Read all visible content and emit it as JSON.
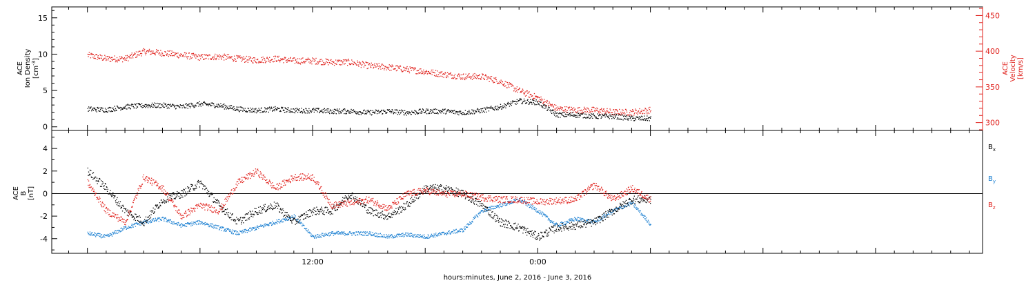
{
  "chart_data": [
    {
      "type": "scatter",
      "panel": "top",
      "xlabel": "hours:minutes, June  2, 2016 - June  3, 2016",
      "x_tick_labels": [
        "12:00",
        "0:00"
      ],
      "left_axis": {
        "label_line1": "ACE",
        "label_line2": "Ion Density",
        "label_line3": "[cm",
        "label_sup": "-3",
        "label_close": "]",
        "ylim": [
          -0.5,
          16.5
        ],
        "ticks": [
          0,
          5,
          10,
          15
        ],
        "tick_labels": [
          "0",
          "5",
          "10",
          "15"
        ],
        "color": "#000000"
      },
      "right_axis": {
        "label_line1": "ACE",
        "label_line2": "Velocity",
        "label_line3": "[km/s]",
        "ylim": [
          289,
          462
        ],
        "ticks": [
          300,
          350,
          400,
          450
        ],
        "tick_labels": [
          "300",
          "350",
          "400",
          "450"
        ],
        "color": "#e0201b"
      },
      "series": [
        {
          "color": "#000000",
          "axis": "left",
          "x_hours": [
            0,
            1,
            2,
            3,
            4,
            5,
            6,
            7,
            8,
            9,
            10,
            11,
            12,
            13,
            14,
            15,
            16,
            17,
            18,
            19,
            20,
            21,
            22,
            23,
            24,
            25,
            26,
            27,
            28,
            29,
            30
          ],
          "values": [
            2.5,
            2.4,
            2.8,
            3.0,
            3.0,
            2.8,
            3.2,
            3.0,
            2.5,
            2.3,
            2.5,
            2.3,
            2.3,
            2.2,
            2.2,
            2.0,
            2.2,
            2.0,
            2.2,
            2.2,
            2.0,
            2.3,
            2.8,
            3.6,
            3.4,
            1.7,
            1.7,
            1.5,
            1.5,
            1.2,
            1.2
          ]
        },
        {
          "color": "#e0201b",
          "axis": "right",
          "x_hours": [
            0,
            1,
            2,
            3,
            4,
            5,
            6,
            7,
            8,
            9,
            10,
            11,
            12,
            13,
            14,
            15,
            16,
            17,
            18,
            19,
            20,
            21,
            22,
            23,
            24,
            25,
            26,
            27,
            28,
            29,
            30
          ],
          "values": [
            395,
            390,
            390,
            400,
            398,
            395,
            392,
            393,
            390,
            388,
            390,
            387,
            387,
            385,
            385,
            380,
            378,
            375,
            372,
            368,
            365,
            365,
            358,
            345,
            335,
            320,
            318,
            318,
            315,
            315,
            318
          ]
        }
      ]
    },
    {
      "type": "scatter",
      "panel": "bottom",
      "x_tick_labels": [
        "12:00",
        "0:00"
      ],
      "left_axis": {
        "label_line1": "ACE",
        "label_line2": "B",
        "label_line3": "[nT]",
        "ylim": [
          -5.3,
          5.6
        ],
        "ticks": [
          -4,
          -2,
          0,
          2,
          4
        ],
        "tick_labels": [
          "-4",
          "-2",
          "0",
          "2",
          "4"
        ],
        "color": "#000000"
      },
      "legend": [
        {
          "name": "B",
          "sub": "x",
          "color": "#000000"
        },
        {
          "name": "B",
          "sub": "y",
          "color": "#1a7fd1"
        },
        {
          "name": "B",
          "sub": "z",
          "color": "#e0201b"
        }
      ],
      "series": [
        {
          "color": "#000000",
          "x_hours": [
            0,
            1,
            2,
            3,
            4,
            5,
            6,
            7,
            8,
            9,
            10,
            11,
            12,
            13,
            14,
            15,
            16,
            17,
            18,
            19,
            20,
            21,
            22,
            23,
            24,
            25,
            26,
            27,
            28,
            29,
            30
          ],
          "values": [
            2.0,
            0.5,
            -1.5,
            -2.5,
            -0.5,
            0.0,
            1.0,
            -1.0,
            -2.5,
            -1.5,
            -1.0,
            -2.5,
            -1.5,
            -1.5,
            0.0,
            -1.5,
            -2.0,
            -1.0,
            0.5,
            0.5,
            0.0,
            -1.0,
            -2.5,
            -3.0,
            -3.8,
            -3.0,
            -2.8,
            -2.5,
            -1.5,
            -0.5,
            -0.5
          ]
        },
        {
          "color": "#1a7fd1",
          "x_hours": [
            0,
            1,
            2,
            3,
            4,
            5,
            6,
            7,
            8,
            9,
            10,
            11,
            12,
            13,
            14,
            15,
            16,
            17,
            18,
            19,
            20,
            21,
            22,
            23,
            24,
            25,
            26,
            27,
            28,
            29,
            30
          ],
          "values": [
            -3.5,
            -3.8,
            -3.0,
            -2.5,
            -2.2,
            -2.8,
            -2.5,
            -3.0,
            -3.5,
            -3.0,
            -2.5,
            -2.0,
            -3.8,
            -3.5,
            -3.5,
            -3.5,
            -3.8,
            -3.6,
            -3.8,
            -3.5,
            -3.2,
            -1.5,
            -1.0,
            -0.5,
            -1.5,
            -2.8,
            -2.2,
            -2.5,
            -1.5,
            -0.8,
            -2.7
          ]
        },
        {
          "color": "#e0201b",
          "x_hours": [
            0,
            1,
            2,
            3,
            4,
            5,
            6,
            7,
            8,
            9,
            10,
            11,
            12,
            13,
            14,
            15,
            16,
            17,
            18,
            19,
            20,
            21,
            22,
            23,
            24,
            25,
            26,
            27,
            28,
            29,
            30
          ],
          "values": [
            1.0,
            -1.5,
            -2.5,
            1.5,
            0.5,
            -2.0,
            -1.0,
            -1.5,
            1.0,
            2.0,
            0.5,
            1.5,
            1.5,
            -1.0,
            -0.8,
            -0.5,
            -1.3,
            0.0,
            0.3,
            0.0,
            0.0,
            -0.3,
            -0.5,
            -0.5,
            -0.7,
            -0.6,
            -0.5,
            0.8,
            -0.5,
            0.5,
            -0.5
          ]
        }
      ]
    }
  ]
}
